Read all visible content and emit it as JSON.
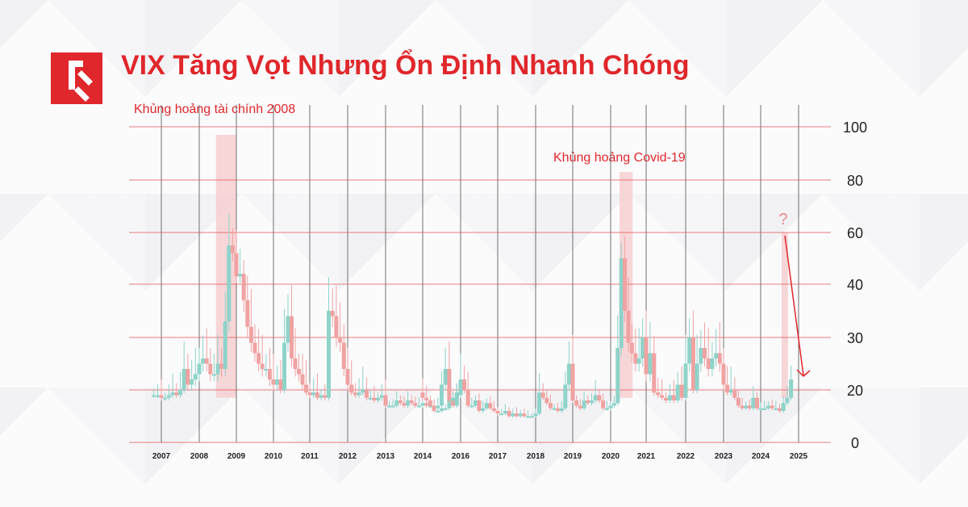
{
  "title": "VIX Tăng Vọt Nhưng Ổn Định Nhanh Chóng",
  "colors": {
    "accent": "#e0272b",
    "up": "#8fd3c9",
    "down": "#f0a2a2",
    "grid_h": "#e34a4a",
    "grid_v": "#444444",
    "highlight": "#f6c9cc"
  },
  "annotations": {
    "crisis_2008": "Khủng hoảng tài chính 2008",
    "covid": "Khủng hoảng Covid-19",
    "question": "?"
  },
  "chart_data": {
    "type": "candlestick",
    "title": "VIX Tăng Vọt Nhưng Ổn Định Nhanh Chóng",
    "xlabel": "",
    "ylabel": "",
    "ylim": [
      0,
      100
    ],
    "y_ticks": [
      0,
      20,
      30,
      40,
      60,
      80,
      100
    ],
    "x_ticks": [
      "2007",
      "2008",
      "2009",
      "2010",
      "2011",
      "2012",
      "2013",
      "2014",
      "2016",
      "2017",
      "2018",
      "2019",
      "2020",
      "2021",
      "2022",
      "2023",
      "2024",
      "2025"
    ],
    "highlight_periods": [
      {
        "label": "Khủng hoảng tài chính 2008",
        "x_range": [
          2008.45,
          2008.99
        ],
        "y_range": [
          17,
          97
        ]
      },
      {
        "label": "Khủng hoảng Covid-19",
        "x_range": [
          2020.25,
          2020.62
        ],
        "y_range": [
          17,
          83
        ]
      },
      {
        "label": "?",
        "x_range": [
          2024.55,
          2024.72
        ],
        "y_range": [
          17,
          60
        ]
      }
    ],
    "series": [
      {
        "values": [
          [
            2006.8,
            18
          ],
          [
            2006.9,
            18
          ],
          [
            2007.0,
            17
          ],
          [
            2007.1,
            17
          ],
          [
            2007.2,
            18
          ],
          [
            2007.3,
            19
          ],
          [
            2007.4,
            18
          ],
          [
            2007.5,
            20
          ],
          [
            2007.6,
            24
          ],
          [
            2007.7,
            21
          ],
          [
            2007.8,
            22
          ],
          [
            2007.9,
            23
          ],
          [
            2008.0,
            25
          ],
          [
            2008.1,
            26
          ],
          [
            2008.2,
            25
          ],
          [
            2008.3,
            23
          ],
          [
            2008.4,
            23
          ],
          [
            2008.5,
            25
          ],
          [
            2008.6,
            24
          ],
          [
            2008.7,
            33
          ],
          [
            2008.8,
            55
          ],
          [
            2008.9,
            52
          ],
          [
            2009.0,
            43
          ],
          [
            2009.1,
            44
          ],
          [
            2009.2,
            37
          ],
          [
            2009.3,
            32
          ],
          [
            2009.4,
            29
          ],
          [
            2009.5,
            27
          ],
          [
            2009.6,
            25
          ],
          [
            2009.7,
            24
          ],
          [
            2009.8,
            24
          ],
          [
            2009.9,
            22
          ],
          [
            2010.0,
            21
          ],
          [
            2010.1,
            22
          ],
          [
            2010.2,
            20
          ],
          [
            2010.3,
            29
          ],
          [
            2010.4,
            34
          ],
          [
            2010.5,
            26
          ],
          [
            2010.6,
            24
          ],
          [
            2010.7,
            23
          ],
          [
            2010.8,
            21
          ],
          [
            2010.9,
            19
          ],
          [
            2011.0,
            18
          ],
          [
            2011.1,
            19
          ],
          [
            2011.2,
            17
          ],
          [
            2011.3,
            18
          ],
          [
            2011.4,
            17
          ],
          [
            2011.5,
            35
          ],
          [
            2011.6,
            34
          ],
          [
            2011.7,
            30
          ],
          [
            2011.8,
            29
          ],
          [
            2011.9,
            24
          ],
          [
            2012.0,
            21
          ],
          [
            2012.1,
            19
          ],
          [
            2012.2,
            18
          ],
          [
            2012.3,
            19
          ],
          [
            2012.4,
            20
          ],
          [
            2012.5,
            17
          ],
          [
            2012.6,
            17
          ],
          [
            2012.7,
            16
          ],
          [
            2012.8,
            17
          ],
          [
            2012.9,
            18
          ],
          [
            2013.0,
            14
          ],
          [
            2013.1,
            14
          ],
          [
            2013.2,
            14
          ],
          [
            2013.3,
            16
          ],
          [
            2013.4,
            15
          ],
          [
            2013.5,
            14
          ],
          [
            2013.6,
            16
          ],
          [
            2013.7,
            15
          ],
          [
            2013.8,
            14
          ],
          [
            2013.9,
            14
          ],
          [
            2014.0,
            15
          ],
          [
            2014.1,
            14
          ],
          [
            2014.2,
            14
          ],
          [
            2014.3,
            12
          ],
          [
            2014.4,
            12
          ],
          [
            2014.5,
            13
          ],
          [
            2014.6,
            13
          ],
          [
            2014.7,
            16
          ],
          [
            2014.8,
            14
          ],
          [
            2014.9,
            19
          ],
          [
            2015.0,
            17
          ],
          [
            2015.1,
            16
          ],
          [
            2015.2,
            14
          ],
          [
            2015.3,
            13
          ],
          [
            2015.4,
            14
          ],
          [
            2015.5,
            21
          ],
          [
            2015.6,
            24
          ],
          [
            2015.7,
            16
          ],
          [
            2015.8,
            17
          ],
          [
            2015.9,
            18
          ],
          [
            2016.0,
            22
          ],
          [
            2016.1,
            20
          ],
          [
            2016.2,
            14
          ],
          [
            2016.3,
            14
          ],
          [
            2016.4,
            16
          ],
          [
            2016.5,
            12
          ],
          [
            2016.6,
            13
          ],
          [
            2016.7,
            15
          ],
          [
            2016.8,
            13
          ],
          [
            2016.9,
            12
          ],
          [
            2017.0,
            11
          ],
          [
            2017.1,
            11
          ],
          [
            2017.2,
            12
          ],
          [
            2017.3,
            10
          ],
          [
            2017.4,
            11
          ],
          [
            2017.5,
            10
          ],
          [
            2017.6,
            11
          ],
          [
            2017.7,
            10
          ],
          [
            2017.8,
            10
          ],
          [
            2017.9,
            10
          ],
          [
            2018.0,
            11
          ],
          [
            2018.1,
            19
          ],
          [
            2018.2,
            17
          ],
          [
            2018.3,
            15
          ],
          [
            2018.4,
            13
          ],
          [
            2018.5,
            13
          ],
          [
            2018.6,
            12
          ],
          [
            2018.7,
            13
          ],
          [
            2018.8,
            21
          ],
          [
            2018.9,
            25
          ],
          [
            2019.0,
            16
          ],
          [
            2019.1,
            14
          ],
          [
            2019.2,
            13
          ],
          [
            2019.3,
            16
          ],
          [
            2019.4,
            15
          ],
          [
            2019.5,
            16
          ],
          [
            2019.6,
            18
          ],
          [
            2019.7,
            16
          ],
          [
            2019.8,
            13
          ],
          [
            2019.9,
            13
          ],
          [
            2020.0,
            14
          ],
          [
            2020.1,
            15
          ],
          [
            2020.2,
            28
          ],
          [
            2020.3,
            50
          ],
          [
            2020.4,
            35
          ],
          [
            2020.5,
            29
          ],
          [
            2020.6,
            27
          ],
          [
            2020.7,
            25
          ],
          [
            2020.8,
            26
          ],
          [
            2020.9,
            30
          ],
          [
            2021.0,
            23
          ],
          [
            2021.1,
            27
          ],
          [
            2021.2,
            19
          ],
          [
            2021.3,
            18
          ],
          [
            2021.4,
            17
          ],
          [
            2021.5,
            16
          ],
          [
            2021.6,
            18
          ],
          [
            2021.7,
            16
          ],
          [
            2021.8,
            21
          ],
          [
            2021.9,
            17
          ],
          [
            2022.0,
            25
          ],
          [
            2022.1,
            30
          ],
          [
            2022.2,
            20
          ],
          [
            2022.3,
            25
          ],
          [
            2022.4,
            28
          ],
          [
            2022.5,
            26
          ],
          [
            2022.6,
            24
          ],
          [
            2022.7,
            26
          ],
          [
            2022.8,
            27
          ],
          [
            2022.9,
            25
          ],
          [
            2023.0,
            21
          ],
          [
            2023.1,
            19
          ],
          [
            2023.2,
            20
          ],
          [
            2023.3,
            17
          ],
          [
            2023.4,
            14
          ],
          [
            2023.5,
            13
          ],
          [
            2023.6,
            14
          ],
          [
            2023.7,
            13
          ],
          [
            2023.8,
            17
          ],
          [
            2023.9,
            13
          ],
          [
            2024.0,
            13
          ],
          [
            2024.1,
            13
          ],
          [
            2024.2,
            14
          ],
          [
            2024.3,
            13
          ],
          [
            2024.4,
            13
          ],
          [
            2024.5,
            12
          ],
          [
            2024.6,
            15
          ],
          [
            2024.7,
            17
          ],
          [
            2024.8,
            22
          ]
        ]
      }
    ]
  }
}
